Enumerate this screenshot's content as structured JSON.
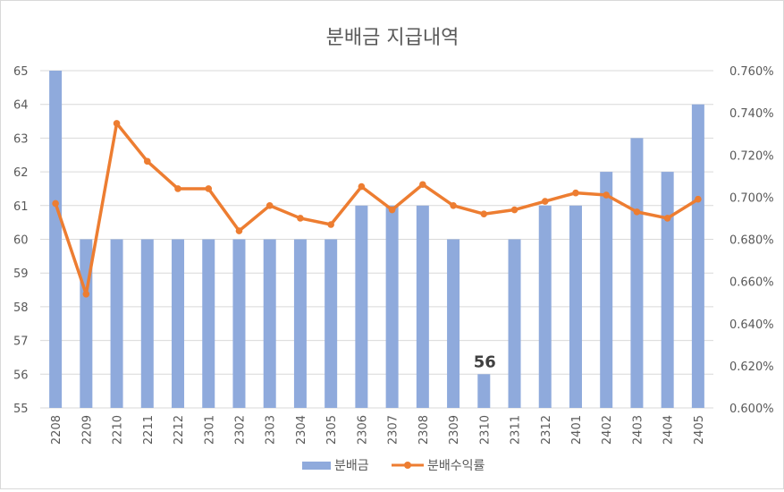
{
  "chart_data": {
    "type": "bar+line",
    "title": "분배금 지급내역",
    "categories": [
      "2208",
      "2209",
      "2210",
      "2211",
      "2212",
      "2301",
      "2302",
      "2303",
      "2304",
      "2305",
      "2306",
      "2307",
      "2308",
      "2309",
      "2310",
      "2311",
      "2312",
      "2401",
      "2402",
      "2403",
      "2404",
      "2405"
    ],
    "series": [
      {
        "name": "분배금",
        "type": "bar",
        "axis": "left",
        "color": "#8faadc",
        "values": [
          65,
          60,
          60,
          60,
          60,
          60,
          60,
          60,
          60,
          60,
          61,
          61,
          61,
          60,
          56,
          60,
          61,
          61,
          62,
          63,
          62,
          64
        ]
      },
      {
        "name": "분배수익률",
        "type": "line",
        "axis": "right",
        "color": "#ed7d31",
        "values": [
          0.00697,
          0.00654,
          0.00735,
          0.00717,
          0.00704,
          0.00704,
          0.00684,
          0.00696,
          0.0069,
          0.00687,
          0.00705,
          0.00694,
          0.00706,
          0.00696,
          0.00692,
          0.00694,
          0.00698,
          0.00702,
          0.00701,
          0.00693,
          0.0069,
          0.00699
        ]
      }
    ],
    "y_left": {
      "min": 55,
      "max": 65,
      "ticks": [
        "55",
        "56",
        "57",
        "58",
        "59",
        "60",
        "61",
        "62",
        "63",
        "64",
        "65"
      ]
    },
    "y_right": {
      "min": 0.006,
      "max": 0.0076,
      "ticks": [
        "0.600%",
        "0.620%",
        "0.640%",
        "0.660%",
        "0.680%",
        "0.700%",
        "0.720%",
        "0.740%",
        "0.760%"
      ]
    },
    "annotation": {
      "category": "2310",
      "text": "56"
    },
    "gridlines": true,
    "legend_position": "bottom"
  }
}
